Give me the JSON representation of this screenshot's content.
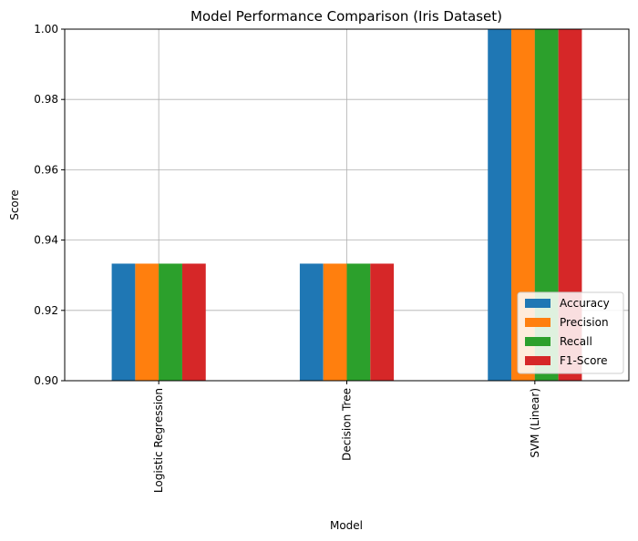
{
  "chart_data": {
    "type": "bar",
    "title": "Model Performance Comparison (Iris Dataset)",
    "xlabel": "Model",
    "ylabel": "Score",
    "categories": [
      "Logistic Regression",
      "Decision Tree",
      "SVM (Linear)"
    ],
    "series": [
      {
        "name": "Accuracy",
        "color": "#1f77b4",
        "values": [
          0.9333,
          0.9333,
          1.0
        ]
      },
      {
        "name": "Precision",
        "color": "#ff7f0e",
        "values": [
          0.9333,
          0.9333,
          1.0
        ]
      },
      {
        "name": "Recall",
        "color": "#2ca02c",
        "values": [
          0.9333,
          0.9333,
          1.0
        ]
      },
      {
        "name": "F1-Score",
        "color": "#d62728",
        "values": [
          0.9333,
          0.9333,
          1.0
        ]
      }
    ],
    "ylim": [
      0.9,
      1.0
    ],
    "yticks": [
      "0.90",
      "0.92",
      "0.94",
      "0.96",
      "0.98",
      "1.00"
    ],
    "grid": true,
    "legend_position": "bottom-right"
  }
}
